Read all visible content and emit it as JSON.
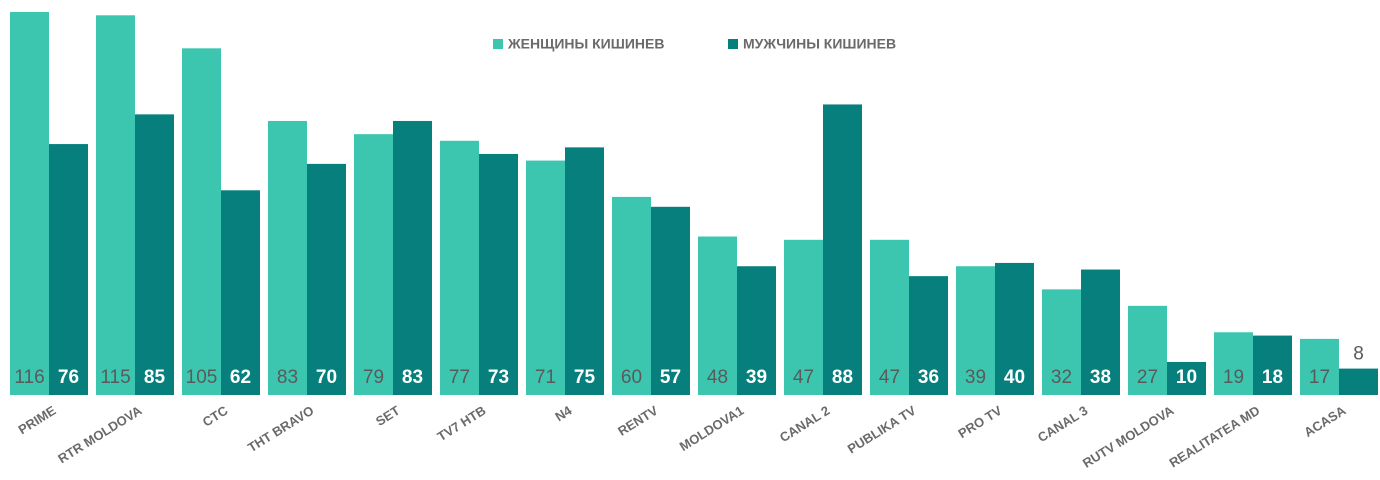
{
  "chart_data": {
    "type": "bar",
    "categories": [
      "PRIME",
      "RTR MOLDOVA",
      "CTC",
      "THT BRAVO",
      "SET",
      "TV7 HTB",
      "N4",
      "RENTV",
      "MOLDOVA1",
      "CANAL 2",
      "PUBLIKA TV",
      "PRO TV",
      "CANAL 3",
      "RUTV MOLDOVA",
      "REALITATEA MD",
      "ACASA"
    ],
    "series": [
      {
        "name": "ЖЕНЩИНЫ КИШИНЕВ",
        "color": "#3cc6b0",
        "values": [
          116,
          115,
          105,
          83,
          79,
          77,
          71,
          60,
          48,
          47,
          47,
          39,
          32,
          27,
          19,
          17
        ]
      },
      {
        "name": "МУЖЧИНЫ КИШИНЕВ",
        "color": "#067f7d",
        "values": [
          76,
          85,
          62,
          70,
          83,
          73,
          75,
          57,
          39,
          88,
          36,
          40,
          38,
          10,
          18,
          8
        ]
      }
    ],
    "legend": "top"
  }
}
